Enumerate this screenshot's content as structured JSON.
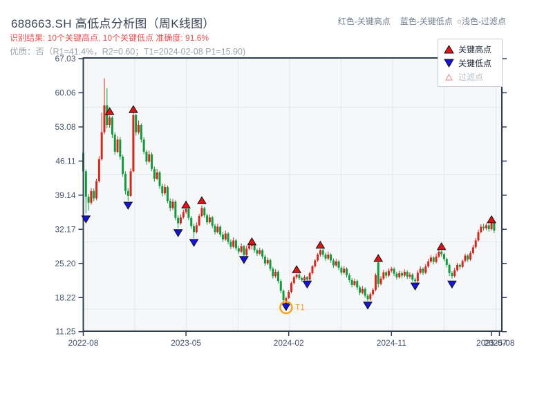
{
  "header": {
    "title": "688663.SH 高低点分析图（周K线图）",
    "result_line": "识别结果: 10个关键高点, 10个关键低点  准确度: 91.6%",
    "quality_line": "优质：否（R1=41.4%，R2=0.60；T1=2024-02-08 P1=15.90)",
    "top_legend": [
      {
        "label": "红色-关键高点"
      },
      {
        "label": "蓝色-关键低点"
      },
      {
        "label": "○浅色-过滤点"
      }
    ]
  },
  "legend": {
    "items": [
      {
        "label": "关键高点",
        "symbol": "triangle-up-red",
        "color": "#e01414"
      },
      {
        "label": "关键低点",
        "symbol": "triangle-down-blue",
        "color": "#1414dc"
      },
      {
        "label": "过滤点",
        "symbol": "triangle-open",
        "color": "#e59a9a"
      }
    ]
  },
  "chart_data": {
    "type": "candlestick",
    "symbol": "688663.SH",
    "period": "weekly",
    "title": "688663.SH 周K线 高低点分析",
    "y_ticks": [
      67.03,
      60.06,
      53.08,
      46.11,
      39.14,
      32.17,
      25.2,
      18.22,
      11.25
    ],
    "ylim": [
      11.25,
      67.03
    ],
    "x_ticks": [
      {
        "label": "2022-08",
        "week": 0
      },
      {
        "label": "2023-05",
        "week": 39
      },
      {
        "label": "2024-02",
        "week": 78
      },
      {
        "label": "2024-11",
        "week": 117
      },
      {
        "label": "2025-07",
        "week": 155
      },
      {
        "label": "2025-08",
        "week": 158
      }
    ],
    "xlim_weeks": [
      0,
      159
    ],
    "grid": true,
    "colors": {
      "up": "#d2291f",
      "down": "#0f9a3c",
      "high_marker": "#e01414",
      "low_marker": "#1414dc",
      "marker_edge": "#111111",
      "t1": "#f5a623",
      "axis": "#2e3c50",
      "tick_label": "#45526a",
      "plot_bg": "#f6f7f9",
      "grid_line": "#e3e6ea"
    },
    "candles": [
      [
        47.8,
        48.4,
        43.3,
        44.0
      ],
      [
        44.0,
        44.4,
        35.4,
        38.8
      ],
      [
        38.8,
        39.4,
        36.0,
        37.6
      ],
      [
        37.6,
        40.6,
        37.2,
        40.0
      ],
      [
        40.0,
        40.5,
        37.9,
        38.5
      ],
      [
        38.5,
        42.5,
        38.1,
        42.0
      ],
      [
        42.0,
        47.1,
        41.7,
        46.5
      ],
      [
        46.5,
        56.0,
        46.2,
        52.0
      ],
      [
        52.0,
        63.0,
        51.6,
        57.5
      ],
      [
        57.5,
        61.0,
        52.8,
        53.5
      ],
      [
        53.5,
        55.4,
        52.9,
        55.0
      ],
      [
        55.0,
        55.3,
        50.8,
        51.5
      ],
      [
        51.5,
        52.0,
        47.4,
        48.0
      ],
      [
        48.0,
        51.2,
        47.7,
        50.5
      ],
      [
        50.5,
        51.0,
        46.4,
        47.0
      ],
      [
        47.0,
        47.4,
        42.9,
        43.5
      ],
      [
        43.5,
        44.0,
        39.3,
        40.0
      ],
      [
        40.0,
        40.6,
        38.0,
        39.0
      ],
      [
        39.0,
        44.6,
        38.8,
        44.0
      ],
      [
        44.0,
        56.2,
        43.8,
        55.5
      ],
      [
        55.5,
        55.8,
        51.3,
        52.0
      ],
      [
        52.0,
        54.4,
        51.6,
        53.5
      ],
      [
        53.5,
        53.8,
        49.9,
        50.5
      ],
      [
        50.5,
        51.0,
        47.5,
        48.0
      ],
      [
        48.0,
        48.4,
        45.4,
        46.0
      ],
      [
        46.0,
        48.2,
        45.7,
        47.5
      ],
      [
        47.5,
        47.9,
        44.0,
        44.5
      ],
      [
        44.5,
        45.0,
        41.9,
        42.5
      ],
      [
        42.5,
        44.5,
        42.2,
        43.8
      ],
      [
        43.8,
        44.1,
        40.4,
        41.0
      ],
      [
        41.0,
        41.5,
        38.9,
        39.5
      ],
      [
        39.5,
        41.4,
        39.1,
        40.8
      ],
      [
        40.8,
        41.1,
        37.5,
        38.0
      ],
      [
        38.0,
        38.5,
        35.9,
        36.5
      ],
      [
        36.5,
        38.4,
        36.1,
        37.8
      ],
      [
        37.8,
        38.1,
        34.0,
        34.5
      ],
      [
        34.5,
        35.0,
        32.4,
        33.4
      ],
      [
        33.4,
        35.2,
        33.1,
        34.6
      ],
      [
        34.6,
        36.2,
        34.3,
        35.7
      ],
      [
        35.7,
        36.6,
        35.3,
        36.3
      ],
      [
        36.3,
        36.6,
        34.0,
        34.5
      ],
      [
        34.5,
        34.9,
        32.3,
        32.8
      ],
      [
        32.8,
        33.3,
        30.4,
        31.6
      ],
      [
        31.6,
        33.6,
        31.3,
        33.0
      ],
      [
        33.0,
        35.3,
        32.8,
        34.9
      ],
      [
        34.9,
        37.0,
        34.6,
        36.5
      ],
      [
        36.5,
        36.8,
        34.5,
        35.0
      ],
      [
        35.0,
        35.4,
        33.1,
        33.6
      ],
      [
        33.6,
        35.2,
        33.3,
        34.6
      ],
      [
        34.6,
        34.9,
        32.4,
        32.9
      ],
      [
        32.9,
        33.3,
        31.1,
        31.6
      ],
      [
        31.6,
        33.3,
        31.3,
        32.7
      ],
      [
        32.7,
        33.0,
        30.6,
        31.1
      ],
      [
        31.1,
        31.6,
        29.6,
        30.1
      ],
      [
        30.1,
        31.9,
        29.8,
        31.3
      ],
      [
        31.3,
        31.6,
        29.1,
        29.6
      ],
      [
        29.6,
        30.1,
        28.1,
        28.6
      ],
      [
        28.6,
        30.5,
        28.3,
        29.9
      ],
      [
        29.9,
        30.2,
        27.8,
        28.3
      ],
      [
        28.3,
        28.8,
        27.1,
        27.6
      ],
      [
        27.6,
        29.3,
        27.3,
        28.7
      ],
      [
        28.7,
        29.0,
        26.7,
        26.9
      ],
      [
        26.9,
        28.8,
        26.6,
        28.2
      ],
      [
        28.2,
        29.2,
        27.9,
        28.8
      ],
      [
        28.8,
        29.1,
        28.0,
        28.9
      ],
      [
        28.9,
        29.1,
        27.4,
        27.9
      ],
      [
        27.9,
        28.2,
        26.7,
        27.2
      ],
      [
        27.2,
        28.4,
        26.9,
        27.9
      ],
      [
        27.9,
        28.2,
        26.1,
        26.6
      ],
      [
        26.6,
        27.0,
        24.7,
        25.2
      ],
      [
        25.2,
        26.4,
        24.9,
        25.9
      ],
      [
        25.9,
        26.2,
        23.6,
        24.1
      ],
      [
        24.1,
        24.5,
        22.1,
        22.6
      ],
      [
        22.6,
        24.0,
        22.2,
        23.5
      ],
      [
        23.5,
        23.8,
        21.1,
        21.6
      ],
      [
        21.6,
        22.0,
        19.1,
        19.6
      ],
      [
        19.6,
        19.9,
        17.3,
        17.7
      ],
      [
        16.5,
        18.4,
        15.9,
        18.1
      ],
      [
        18.1,
        19.8,
        17.9,
        19.4
      ],
      [
        19.4,
        21.5,
        19.1,
        21.2
      ],
      [
        21.2,
        22.7,
        20.9,
        22.4
      ],
      [
        22.4,
        23.1,
        22.0,
        22.9
      ],
      [
        22.9,
        23.2,
        21.8,
        22.2
      ],
      [
        22.2,
        22.5,
        21.4,
        21.8
      ],
      [
        21.8,
        22.8,
        21.5,
        22.4
      ],
      [
        22.4,
        22.6,
        21.5,
        21.9
      ],
      [
        21.9,
        23.5,
        21.6,
        23.2
      ],
      [
        23.2,
        24.9,
        22.9,
        24.6
      ],
      [
        24.6,
        26.1,
        24.3,
        25.8
      ],
      [
        25.8,
        27.3,
        25.5,
        27.0
      ],
      [
        27.0,
        28.1,
        26.6,
        27.9
      ],
      [
        27.9,
        28.2,
        26.5,
        27.0
      ],
      [
        27.0,
        27.4,
        25.7,
        26.2
      ],
      [
        26.2,
        27.6,
        25.9,
        27.0
      ],
      [
        27.0,
        27.3,
        25.3,
        25.8
      ],
      [
        25.8,
        26.2,
        24.3,
        24.8
      ],
      [
        24.8,
        26.1,
        24.5,
        25.6
      ],
      [
        25.6,
        25.9,
        23.8,
        24.3
      ],
      [
        24.3,
        24.7,
        22.8,
        23.3
      ],
      [
        23.3,
        24.6,
        23.0,
        24.1
      ],
      [
        24.1,
        24.4,
        22.3,
        22.8
      ],
      [
        22.8,
        23.2,
        21.3,
        21.8
      ],
      [
        21.8,
        22.2,
        20.3,
        20.8
      ],
      [
        20.8,
        22.1,
        20.5,
        21.6
      ],
      [
        21.6,
        21.9,
        19.8,
        20.3
      ],
      [
        20.3,
        20.7,
        18.7,
        19.2
      ],
      [
        19.2,
        20.6,
        18.9,
        20.0
      ],
      [
        20.0,
        20.3,
        18.2,
        18.6
      ],
      [
        18.6,
        19.0,
        17.5,
        17.9
      ],
      [
        17.9,
        19.3,
        17.6,
        18.9
      ],
      [
        18.9,
        20.2,
        18.6,
        19.8
      ],
      [
        19.8,
        23.2,
        19.5,
        22.8
      ],
      [
        25.4,
        25.6,
        20.3,
        21.0
      ],
      [
        21.0,
        22.6,
        20.7,
        22.1
      ],
      [
        22.1,
        23.9,
        21.8,
        23.4
      ],
      [
        23.4,
        23.7,
        22.2,
        22.7
      ],
      [
        22.7,
        24.2,
        22.4,
        23.7
      ],
      [
        23.7,
        24.5,
        23.3,
        24.1
      ],
      [
        24.1,
        24.4,
        22.6,
        23.1
      ],
      [
        23.1,
        23.5,
        21.9,
        22.4
      ],
      [
        22.4,
        23.7,
        22.1,
        23.2
      ],
      [
        23.2,
        23.6,
        22.2,
        22.7
      ],
      [
        22.7,
        24.0,
        22.4,
        23.5
      ],
      [
        23.5,
        23.8,
        22.0,
        22.5
      ],
      [
        22.5,
        23.4,
        22.1,
        22.9
      ],
      [
        22.9,
        23.2,
        21.5,
        21.9
      ],
      [
        21.9,
        22.3,
        21.3,
        21.6
      ],
      [
        21.6,
        23.8,
        21.2,
        23.3
      ],
      [
        23.3,
        24.6,
        23.0,
        24.1
      ],
      [
        24.1,
        24.4,
        22.8,
        23.3
      ],
      [
        23.3,
        25.1,
        23.0,
        24.6
      ],
      [
        24.6,
        26.1,
        24.3,
        25.6
      ],
      [
        25.6,
        26.9,
        25.3,
        26.4
      ],
      [
        26.4,
        26.7,
        25.0,
        25.5
      ],
      [
        25.5,
        27.2,
        25.2,
        26.6
      ],
      [
        26.6,
        28.1,
        26.3,
        27.6
      ],
      [
        27.6,
        27.8,
        26.6,
        27.1
      ],
      [
        27.1,
        27.4,
        25.6,
        26.1
      ],
      [
        26.1,
        26.4,
        24.4,
        24.9
      ],
      [
        24.9,
        25.2,
        22.6,
        23.2
      ],
      [
        23.2,
        23.6,
        22.1,
        22.6
      ],
      [
        22.6,
        24.3,
        22.3,
        23.8
      ],
      [
        23.8,
        25.3,
        23.5,
        24.9
      ],
      [
        24.9,
        25.2,
        24.0,
        24.5
      ],
      [
        24.5,
        26.0,
        24.2,
        25.7
      ],
      [
        25.7,
        27.2,
        25.4,
        26.8
      ],
      [
        26.8,
        27.1,
        25.5,
        26.0
      ],
      [
        26.0,
        27.7,
        25.7,
        27.3
      ],
      [
        27.3,
        29.0,
        27.0,
        28.5
      ],
      [
        28.5,
        30.4,
        28.2,
        29.9
      ],
      [
        29.9,
        32.1,
        29.6,
        31.6
      ],
      [
        31.6,
        33.2,
        31.3,
        32.7
      ],
      [
        32.7,
        33.3,
        31.9,
        32.4
      ],
      [
        32.4,
        33.4,
        32.0,
        33.0
      ],
      [
        33.0,
        33.3,
        31.7,
        32.2
      ],
      [
        32.2,
        33.9,
        31.9,
        33.5
      ],
      [
        33.5,
        33.8,
        31.4,
        31.9
      ]
    ],
    "key_highs": [
      [
        10,
        56.3
      ],
      [
        19,
        56.7
      ],
      [
        39,
        37.2
      ],
      [
        45,
        38.1
      ],
      [
        64,
        29.7
      ],
      [
        81,
        24.0
      ],
      [
        90,
        29.0
      ],
      [
        112,
        26.3
      ],
      [
        136,
        28.7
      ],
      [
        155,
        34.2
      ]
    ],
    "key_lows": [
      [
        1,
        34.2
      ],
      [
        17,
        37.0
      ],
      [
        36,
        31.4
      ],
      [
        42,
        29.4
      ],
      [
        61,
        25.9
      ],
      [
        77,
        16.3
      ],
      [
        85,
        20.9
      ],
      [
        108,
        16.6
      ],
      [
        126,
        20.5
      ],
      [
        140,
        20.9
      ]
    ],
    "t1": {
      "week": 77,
      "price": 16.2,
      "label": "T1"
    }
  }
}
